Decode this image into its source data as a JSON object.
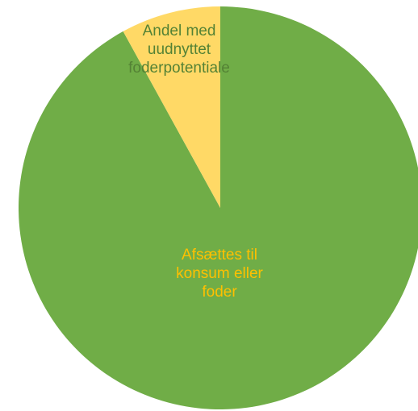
{
  "chart_data": {
    "type": "pie",
    "slices": [
      {
        "label_lines": [
          "Afsættes til",
          "konsum eller",
          "foder"
        ],
        "value": 92,
        "color": "#70AD47",
        "label_color": "#FFC000"
      },
      {
        "label_lines": [
          "Andel med",
          "uudnyttet",
          "foderpotentiale"
        ],
        "value": 8,
        "color": "#FFD966",
        "label_color": "#548235"
      }
    ]
  }
}
